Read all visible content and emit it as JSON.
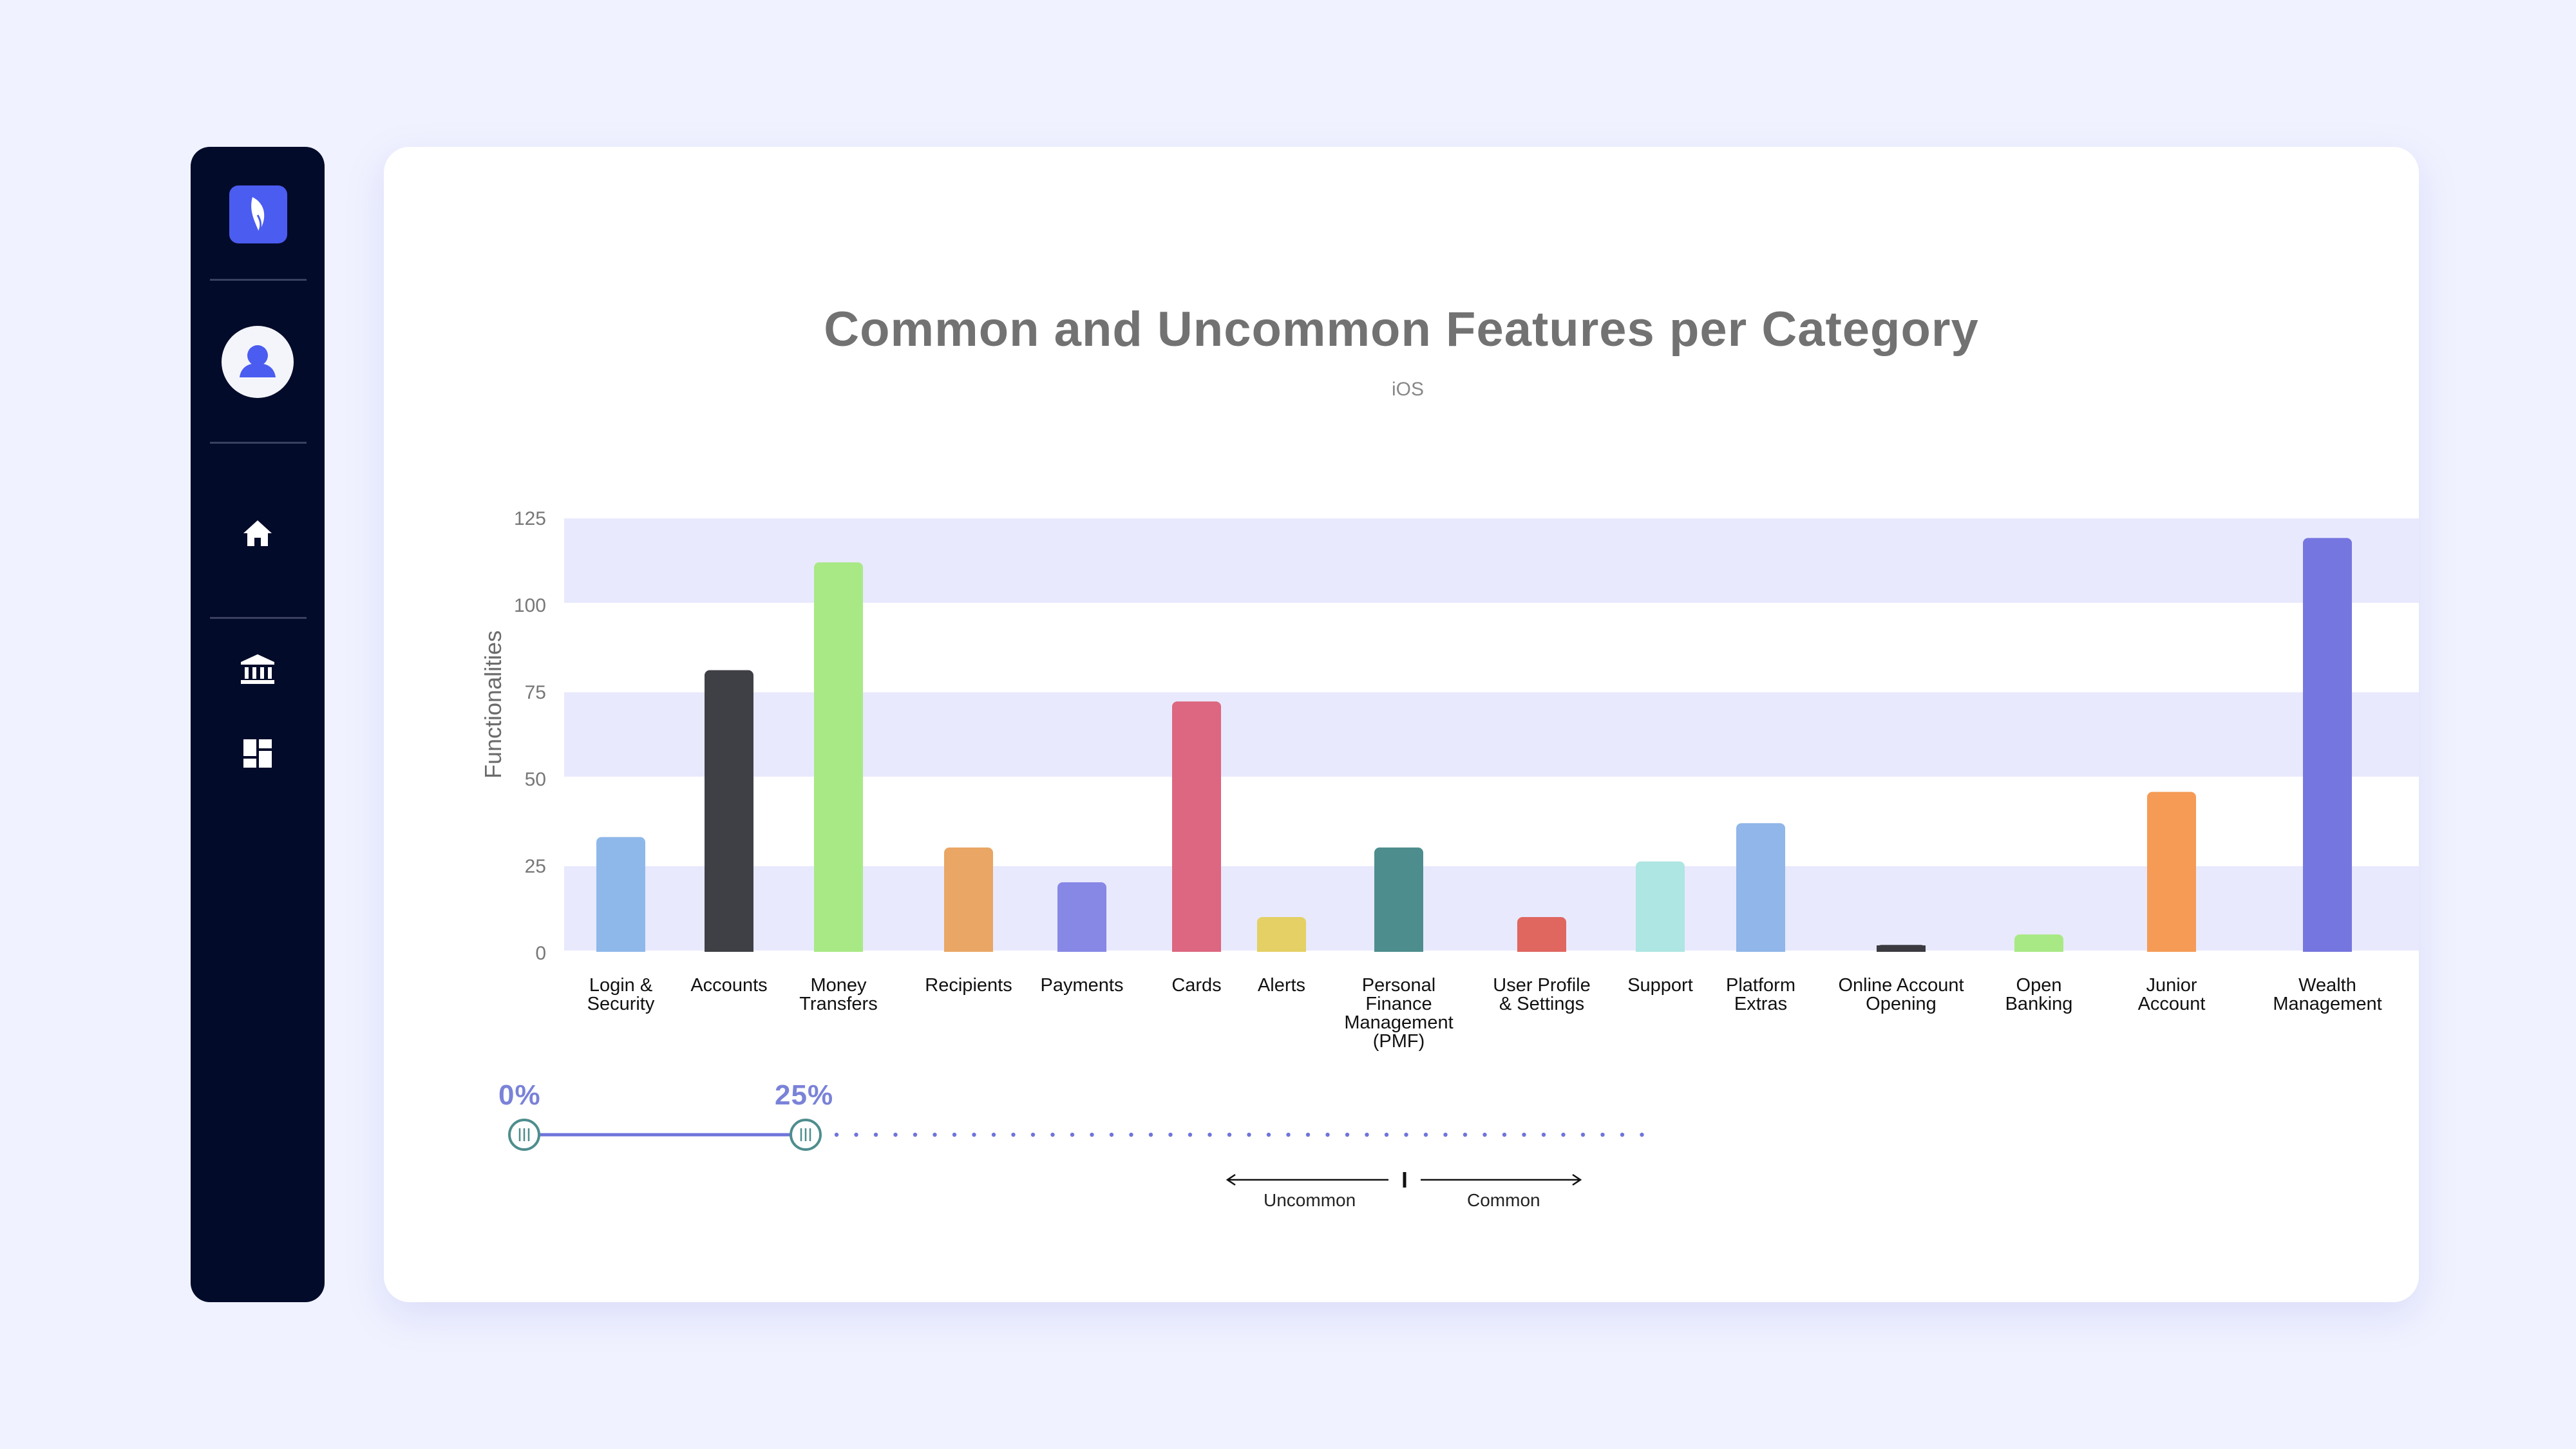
{
  "sidebar": {
    "items": [
      {
        "name": "home",
        "icon": "home-icon"
      },
      {
        "name": "bank",
        "icon": "bank-icon"
      },
      {
        "name": "dashboard",
        "icon": "dashboard-icon"
      }
    ],
    "logo_icon": "leaf-logo-icon",
    "avatar_icon": "user-icon",
    "colors": {
      "background": "#030b2a",
      "accent": "#4b5cf0"
    }
  },
  "chart_data": {
    "type": "bar",
    "title": "Common and Uncommon Features per Category",
    "subtitle": "iOS",
    "ylabel": "Functionalities",
    "xlabel": "",
    "ylim": [
      0,
      125
    ],
    "yticks": [
      "0",
      "25",
      "50",
      "75",
      "100",
      "125"
    ],
    "grid": "alternating horizontal bands",
    "categories": [
      {
        "label": [
          "Login &",
          "Security"
        ],
        "value": 33,
        "color": "#8fb8ea"
      },
      {
        "label": [
          "Accounts"
        ],
        "value": 81,
        "color": "#3f3f46"
      },
      {
        "label": [
          "Money",
          "Transfers"
        ],
        "value": 112,
        "color": "#a8e985"
      },
      {
        "label": [
          "Recipients"
        ],
        "value": 30,
        "color": "#e9a664"
      },
      {
        "label": [
          "Payments"
        ],
        "value": 20,
        "color": "#8788e6"
      },
      {
        "label": [
          "Cards"
        ],
        "value": 72,
        "color": "#dd6680"
      },
      {
        "label": [
          "Alerts"
        ],
        "value": 10,
        "color": "#e4d064"
      },
      {
        "label": [
          "Personal",
          "Finance",
          "Management",
          "(PMF)"
        ],
        "value": 30,
        "color": "#4e8d8d"
      },
      {
        "label": [
          "User Profile",
          "& Settings"
        ],
        "value": 10,
        "color": "#e06660"
      },
      {
        "label": [
          "Support"
        ],
        "value": 26,
        "color": "#ade6e2"
      },
      {
        "label": [
          "Platform",
          "Extras"
        ],
        "value": 37,
        "color": "#90b6ea"
      },
      {
        "label": [
          "Online Account",
          "Opening"
        ],
        "value": 2,
        "color": "#3a3a40"
      },
      {
        "label": [
          "Open",
          "Banking"
        ],
        "value": 5,
        "color": "#a8e985"
      },
      {
        "label": [
          "Junior",
          "Account"
        ],
        "value": 46,
        "color": "#f59b56"
      },
      {
        "label": [
          "Wealth",
          "Management"
        ],
        "value": 119,
        "color": "#7676e0"
      }
    ]
  },
  "slider": {
    "min_label": "0%",
    "max_label": "25%",
    "value_start": 0,
    "value_end": 25,
    "range_max": 100,
    "uncommon_label": "Uncommon",
    "common_label": "Common",
    "color": "#6f74db"
  }
}
